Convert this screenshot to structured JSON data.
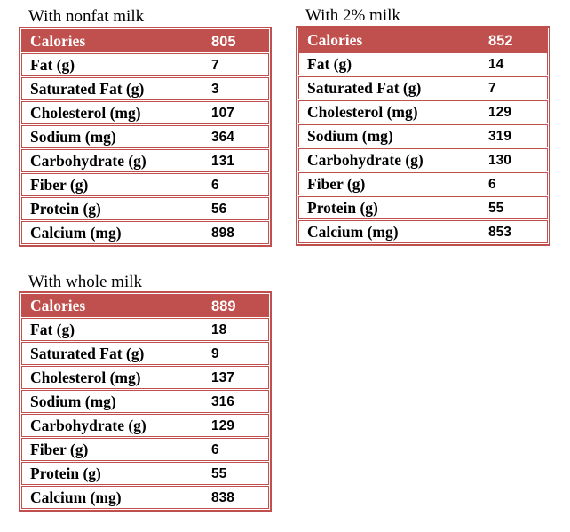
{
  "tables": [
    {
      "title": "With nonfat milk",
      "rows": [
        [
          "Calories",
          805
        ],
        [
          "Fat (g)",
          7
        ],
        [
          "Saturated Fat (g)",
          3
        ],
        [
          "Cholesterol (mg)",
          107
        ],
        [
          "Sodium (mg)",
          364
        ],
        [
          "Carbohydrate (g)",
          131
        ],
        [
          "Fiber (g)",
          6
        ],
        [
          "Protein (g)",
          56
        ],
        [
          "Calcium (mg)",
          898
        ]
      ]
    },
    {
      "title": "With 2% milk",
      "rows": [
        [
          "Calories",
          852
        ],
        [
          "Fat (g)",
          14
        ],
        [
          "Saturated Fat (g)",
          7
        ],
        [
          "Cholesterol (mg)",
          129
        ],
        [
          "Sodium (mg)",
          319
        ],
        [
          "Carbohydrate (g)",
          130
        ],
        [
          "Fiber (g)",
          6
        ],
        [
          "Protein (g)",
          55
        ],
        [
          "Calcium (mg)",
          853
        ]
      ]
    },
    {
      "title": "With whole milk",
      "rows": [
        [
          "Calories",
          889
        ],
        [
          "Fat (g)",
          18
        ],
        [
          "Saturated Fat (g)",
          9
        ],
        [
          "Cholesterol (mg)",
          137
        ],
        [
          "Sodium (mg)",
          316
        ],
        [
          "Carbohydrate (g)",
          129
        ],
        [
          "Fiber (g)",
          6
        ],
        [
          "Protein (g)",
          55
        ],
        [
          "Calcium (mg)",
          838
        ]
      ]
    }
  ]
}
